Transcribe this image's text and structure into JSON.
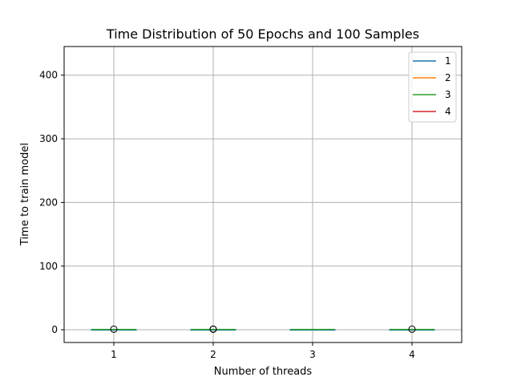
{
  "chart_data": {
    "type": "boxplot",
    "title": "Time Distribution of 50 Epochs and 100 Samples",
    "xlabel": "Number of threads",
    "ylabel": "Time to train model",
    "categories": [
      "1",
      "2",
      "3",
      "4"
    ],
    "ylim": [
      -20,
      445
    ],
    "yticks": [
      0,
      100,
      200,
      300,
      400
    ],
    "grid": true,
    "legend_position": "top-right",
    "boxes": [
      {
        "category": "1",
        "min": 0.2,
        "q1": 0.3,
        "median": 0.4,
        "q3": 0.5,
        "max": 0.7,
        "outliers": [
          0.9
        ]
      },
      {
        "category": "2",
        "min": 0.2,
        "q1": 0.3,
        "median": 0.4,
        "q3": 0.5,
        "max": 0.7,
        "outliers": [
          0.8,
          1.0
        ]
      },
      {
        "category": "3",
        "min": 0.2,
        "q1": 0.3,
        "median": 0.4,
        "q3": 0.5,
        "max": 0.7,
        "outliers": []
      },
      {
        "category": "4",
        "min": 0.2,
        "q1": 0.3,
        "median": 0.4,
        "q3": 0.5,
        "max": 0.7,
        "outliers": [
          0.9
        ]
      }
    ],
    "legend": [
      {
        "label": "1",
        "color": "#1f77b4"
      },
      {
        "label": "2",
        "color": "#ff7f0e"
      },
      {
        "label": "3",
        "color": "#2ca02c"
      },
      {
        "label": "4",
        "color": "#d62728"
      }
    ],
    "colors": {
      "box": "#1f77b4",
      "whisker": "#ff7f0e",
      "median": "#2ca02c",
      "grid": "#b0b0b0",
      "outlier": "#000000"
    }
  }
}
